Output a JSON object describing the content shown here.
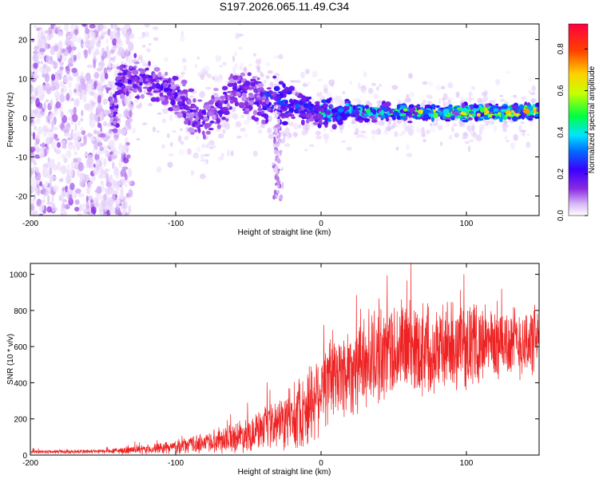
{
  "title": "S197.2026.065.11.49.C34",
  "chart_data": [
    {
      "type": "heatmap",
      "xlabel": "Height of straight line (km)",
      "ylabel": "Frequency (Hz)",
      "xlim": [
        -200,
        150
      ],
      "ylim": [
        -25,
        24
      ],
      "xticks": [
        -200,
        -100,
        0,
        100
      ],
      "yticks": [
        -20,
        -10,
        0,
        10,
        20
      ],
      "colorbar": {
        "label": "Normalized spectral amplitude",
        "range": [
          0,
          0.92
        ],
        "ticks": [
          0.0,
          0.2,
          0.4,
          0.6,
          0.8
        ],
        "colormap": [
          "#ffffff",
          "#d8b8f8",
          "#8a2be2",
          "#3a00ff",
          "#0070ff",
          "#00e5ff",
          "#00ff40",
          "#c8ff00",
          "#ffd000",
          "#ff4000",
          "#ff0040"
        ]
      },
      "features": {
        "noise_region_x": [
          -200,
          -140
        ],
        "ridge": [
          {
            "x": -140,
            "f": 9
          },
          {
            "x": -120,
            "f": 10
          },
          {
            "x": -100,
            "f": 6
          },
          {
            "x": -85,
            "f": 0
          },
          {
            "x": -70,
            "f": 2
          },
          {
            "x": -60,
            "f": 8
          },
          {
            "x": -45,
            "f": 5
          },
          {
            "x": -30,
            "f": 4
          },
          {
            "x": -15,
            "f": 3
          },
          {
            "x": 0,
            "f": 1.5
          },
          {
            "x": 50,
            "f": 1.5
          },
          {
            "x": 100,
            "f": 1.3
          },
          {
            "x": 150,
            "f": 1.6
          }
        ]
      }
    },
    {
      "type": "line",
      "xlabel": "Height of straight line (km)",
      "ylabel": "SNR (10 * v/v)",
      "xlim": [
        -200,
        150
      ],
      "ylim": [
        0,
        1060
      ],
      "xticks": [
        -200,
        -100,
        0,
        100
      ],
      "yticks": [
        0,
        200,
        400,
        600,
        800,
        1000
      ],
      "color": "#ee2222",
      "envelope": {
        "x": [
          -200,
          -150,
          -120,
          -100,
          -80,
          -60,
          -40,
          -20,
          -10,
          0,
          20,
          40,
          60,
          80,
          100,
          120,
          150
        ],
        "mean": [
          18,
          20,
          30,
          45,
          70,
          100,
          140,
          200,
          260,
          380,
          480,
          560,
          600,
          590,
          610,
          620,
          630
        ],
        "spread": [
          10,
          12,
          25,
          35,
          55,
          80,
          110,
          160,
          220,
          230,
          250,
          260,
          260,
          240,
          220,
          200,
          190
        ]
      }
    }
  ]
}
